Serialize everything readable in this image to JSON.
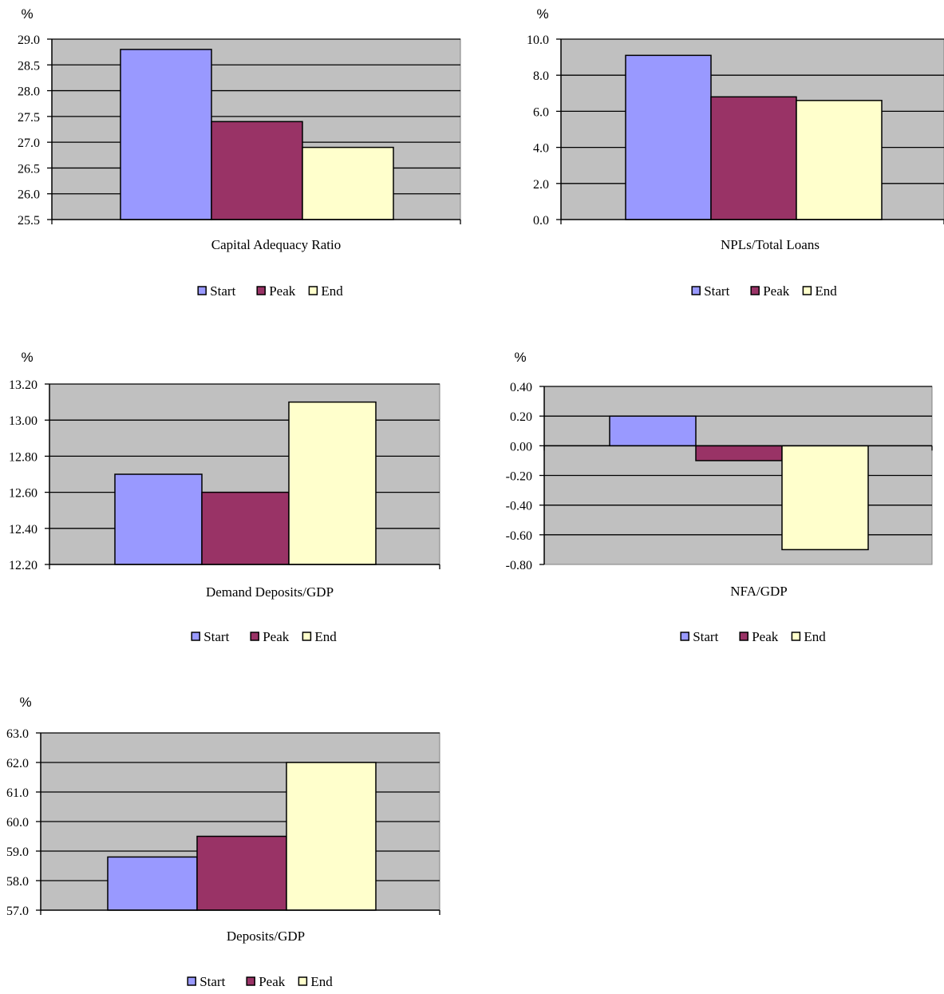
{
  "colors": {
    "plot_bg": "#c0c0c0",
    "gridline": "#000000",
    "series": [
      "#9999ff",
      "#993366",
      "#ffffcc"
    ]
  },
  "legend": {
    "placement": "bottom-center",
    "entries": [
      "Start",
      "Peak",
      "End"
    ]
  },
  "chart_data": [
    {
      "type": "bar",
      "ylabel": "%",
      "xlabel": "Capital Adequacy Ratio",
      "ylim": [
        25.5,
        29.0
      ],
      "yticks": [
        "25.5",
        "26.0",
        "26.5",
        "27.0",
        "27.5",
        "28.0",
        "28.5",
        "29.0"
      ],
      "yticks_values": [
        25.5,
        26.0,
        26.5,
        27.0,
        27.5,
        28.0,
        28.5,
        29.0
      ],
      "grid": true,
      "series": [
        {
          "name": "Start",
          "values": [
            28.8
          ]
        },
        {
          "name": "Peak",
          "values": [
            27.4
          ]
        },
        {
          "name": "End",
          "values": [
            26.9
          ]
        }
      ]
    },
    {
      "type": "bar",
      "ylabel": "%",
      "xlabel": "NPLs/Total Loans",
      "ylim": [
        0.0,
        10.0
      ],
      "yticks": [
        "0.0",
        "2.0",
        "4.0",
        "6.0",
        "8.0",
        "10.0"
      ],
      "yticks_values": [
        0.0,
        2.0,
        4.0,
        6.0,
        8.0,
        10.0
      ],
      "grid": true,
      "series": [
        {
          "name": "Start",
          "values": [
            9.1
          ]
        },
        {
          "name": "Peak",
          "values": [
            6.8
          ]
        },
        {
          "name": "End",
          "values": [
            6.6
          ]
        }
      ]
    },
    {
      "type": "bar",
      "ylabel": "%",
      "xlabel": "Demand Deposits/GDP",
      "ylim": [
        12.2,
        13.2
      ],
      "yticks": [
        "12.20",
        "12.40",
        "12.60",
        "12.80",
        "13.00",
        "13.20"
      ],
      "yticks_values": [
        12.2,
        12.4,
        12.6,
        12.8,
        13.0,
        13.2
      ],
      "grid": true,
      "series": [
        {
          "name": "Start",
          "values": [
            12.7
          ]
        },
        {
          "name": "Peak",
          "values": [
            12.6
          ]
        },
        {
          "name": "End",
          "values": [
            13.1
          ]
        }
      ]
    },
    {
      "type": "bar",
      "ylabel": "%",
      "xlabel": "NFA/GDP",
      "ylim": [
        -0.8,
        0.4
      ],
      "yticks": [
        "-0.80",
        "-0.60",
        "-0.40",
        "-0.20",
        "0.00",
        "0.20",
        "0.40"
      ],
      "yticks_values": [
        -0.8,
        -0.6,
        -0.4,
        -0.2,
        0.0,
        0.2,
        0.4
      ],
      "grid": true,
      "series": [
        {
          "name": "Start",
          "values": [
            0.2
          ]
        },
        {
          "name": "Peak",
          "values": [
            -0.1
          ]
        },
        {
          "name": "End",
          "values": [
            -0.7
          ]
        }
      ]
    },
    {
      "type": "bar",
      "ylabel": "%",
      "xlabel": "Deposits/GDP",
      "ylim": [
        57.0,
        63.0
      ],
      "yticks": [
        "57.0",
        "58.0",
        "59.0",
        "60.0",
        "61.0",
        "62.0",
        "63.0"
      ],
      "yticks_values": [
        57.0,
        58.0,
        59.0,
        60.0,
        61.0,
        62.0,
        63.0
      ],
      "grid": true,
      "series": [
        {
          "name": "Start",
          "values": [
            58.8
          ]
        },
        {
          "name": "Peak",
          "values": [
            59.5
          ]
        },
        {
          "name": "End",
          "values": [
            62.0
          ]
        }
      ]
    }
  ]
}
